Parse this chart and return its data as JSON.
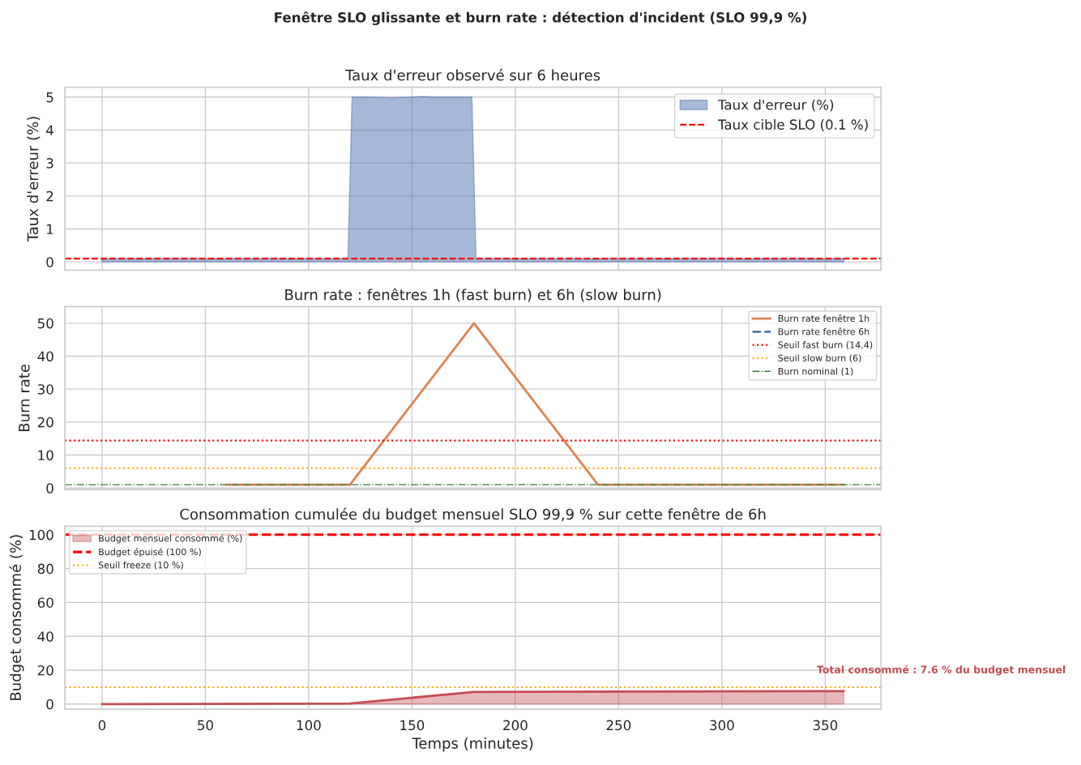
{
  "chart_data": [
    {
      "type": "area",
      "annotations": [
        "Fenêtre SLO glissante et burn rate : détection d'incident (SLO 99,9 %)"
      ],
      "title": "Taux d'erreur observé sur 6 heures",
      "ylabel": "Taux d'erreur (%)",
      "xlim": [
        -18,
        377
      ],
      "xticks": [
        0,
        50,
        100,
        150,
        200,
        250,
        300,
        350
      ],
      "ylim": [
        -0.25,
        5.3
      ],
      "yticks": [
        0,
        1,
        2,
        3,
        4,
        5
      ],
      "tick_labels": "y",
      "grid": true,
      "legend": "top right",
      "series": [
        {
          "name": "Taux d'erreur (%)",
          "color": "#4c72b0",
          "x": [
            0,
            119,
            121,
            130,
            140,
            150,
            155,
            160,
            170,
            179,
            181,
            359
          ],
          "values": [
            0.1,
            0.1,
            5.0,
            5.0,
            4.98,
            5.0,
            5.02,
            5.0,
            5.0,
            5.0,
            0.1,
            0.1
          ]
        }
      ],
      "ref_lines": [
        {
          "axis": "y",
          "value": 0.1,
          "label": "Taux cible SLO (0.1 %)",
          "color": "#ff0000",
          "line_style": "dashed"
        }
      ]
    },
    {
      "type": "line",
      "title": "Burn rate : fenêtres 1h (fast burn) et 6h (slow burn)",
      "ylabel": "Burn rate",
      "xlim": [
        -18,
        377
      ],
      "xticks": [
        0,
        50,
        100,
        150,
        200,
        250,
        300,
        350
      ],
      "ylim": [
        -0.5,
        55
      ],
      "yticks": [
        0,
        10,
        20,
        30,
        40,
        50
      ],
      "tick_labels": "y",
      "grid": true,
      "legend": "top right",
      "series": [
        {
          "name": "Burn rate fenêtre 1h",
          "color": "#dd8452",
          "line_style": "solid",
          "x": [
            60,
            120,
            180,
            240,
            359
          ],
          "values": [
            1,
            1,
            50,
            1,
            1
          ]
        },
        {
          "name": "Burn rate fenêtre 6h",
          "color": "#4c72b0",
          "line_style": "dashed"
        }
      ],
      "ref_lines": [
        {
          "axis": "y",
          "value": 14.4,
          "label": "Seuil fast burn (14,4)",
          "color": "#ff0000",
          "line_style": "dotted"
        },
        {
          "axis": "y",
          "value": 6,
          "label": "Seuil slow burn (6)",
          "color": "#ffa500",
          "line_style": "dotted"
        },
        {
          "axis": "y",
          "value": 1,
          "label": "Burn nominal (1)",
          "color": "#2e7d32",
          "line_style": "dashdot"
        }
      ]
    },
    {
      "type": "area",
      "title": "Consommation cumulée du budget mensuel SLO 99,9 % sur cette fenêtre de 6h",
      "xlabel": "Temps (minutes)",
      "ylabel": "Budget consommé (%)",
      "xlim": [
        -18,
        377
      ],
      "xticks": [
        0,
        50,
        100,
        150,
        200,
        250,
        300,
        350
      ],
      "ylim": [
        -3,
        105
      ],
      "yticks": [
        0,
        20,
        40,
        60,
        80,
        100
      ],
      "grid": true,
      "legend": "top left",
      "series": [
        {
          "name": "Budget mensuel consommé (%)",
          "color": "#c44e52",
          "x": [
            0,
            120,
            180,
            359
          ],
          "values": [
            0,
            0.3,
            7.2,
            7.6
          ]
        }
      ],
      "ref_lines": [
        {
          "axis": "y",
          "value": 100,
          "label": "Budget épuisé (100 %)",
          "color": "#ff0000",
          "line_style": "dashed"
        },
        {
          "axis": "y",
          "value": 10,
          "label": "Seuil freeze (10 %)",
          "color": "#ffa500",
          "line_style": "dotted"
        }
      ],
      "annotations": [
        {
          "text": "Total consommé : 7.6 % du budget mensuel",
          "x": 359,
          "y": 7.6
        }
      ]
    }
  ]
}
